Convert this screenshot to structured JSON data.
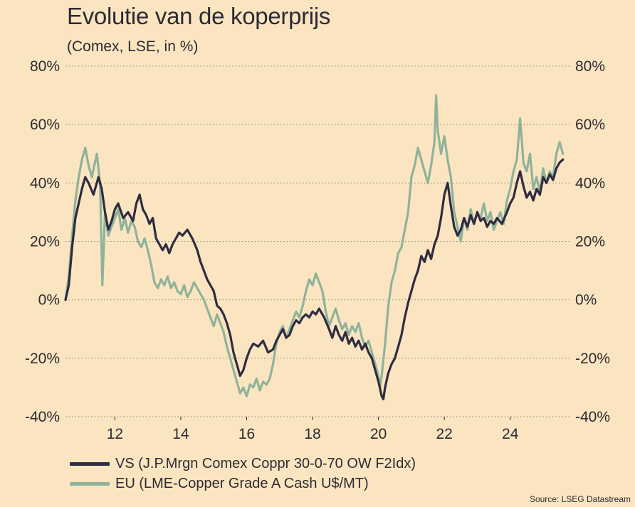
{
  "header": {
    "title": "Evolutie van de koperprijs",
    "subtitle": "(Comex, LSE, in %)"
  },
  "footer": {
    "source": "Source: LSEG Datastream"
  },
  "colors": {
    "vs": "#2e2c41",
    "eu": "#8fb39a",
    "grid": "#8a8480",
    "background": "#fbe5c0"
  },
  "chart_data": {
    "type": "line",
    "title": "Evolutie van de koperprijs",
    "subtitle": "(Comex, LSE, in %)",
    "xlabel": "",
    "ylabel": "",
    "xlim": [
      10.5,
      25.8
    ],
    "ylim": [
      -40,
      80
    ],
    "x_ticks": [
      12,
      14,
      16,
      18,
      20,
      22,
      24
    ],
    "x_tick_labels": [
      "12",
      "14",
      "16",
      "18",
      "20",
      "22",
      "24"
    ],
    "y_ticks": [
      -40,
      -20,
      0,
      20,
      40,
      60,
      80
    ],
    "y_tick_labels": [
      "-40%",
      "-20%",
      "0%",
      "20%",
      "40%",
      "60%",
      "80%"
    ],
    "y_axis": "both",
    "grid": "horizontal dotted",
    "legend": "bottom-left",
    "series": [
      {
        "name": "VS (J.P.Mrgn Comex Coppr 30-0-70 OW F2Idx)",
        "color": "#2e2c41",
        "points": [
          [
            10.5,
            0
          ],
          [
            10.6,
            5
          ],
          [
            10.7,
            18
          ],
          [
            10.8,
            28
          ],
          [
            10.9,
            33
          ],
          [
            11.0,
            38
          ],
          [
            11.1,
            42
          ],
          [
            11.2,
            40
          ],
          [
            11.35,
            36
          ],
          [
            11.5,
            42
          ],
          [
            11.6,
            38
          ],
          [
            11.7,
            30
          ],
          [
            11.8,
            24
          ],
          [
            11.9,
            27
          ],
          [
            12.0,
            31
          ],
          [
            12.1,
            33
          ],
          [
            12.25,
            28
          ],
          [
            12.4,
            30
          ],
          [
            12.55,
            27
          ],
          [
            12.65,
            33
          ],
          [
            12.75,
            36
          ],
          [
            12.85,
            31
          ],
          [
            12.95,
            29
          ],
          [
            13.05,
            26
          ],
          [
            13.15,
            28
          ],
          [
            13.25,
            21
          ],
          [
            13.35,
            19
          ],
          [
            13.45,
            17
          ],
          [
            13.55,
            19
          ],
          [
            13.65,
            16
          ],
          [
            13.75,
            19
          ],
          [
            13.85,
            21
          ],
          [
            13.95,
            23
          ],
          [
            14.05,
            22
          ],
          [
            14.2,
            24
          ],
          [
            14.35,
            21
          ],
          [
            14.5,
            17
          ],
          [
            14.6,
            13
          ],
          [
            14.7,
            10
          ],
          [
            14.8,
            7
          ],
          [
            14.9,
            5
          ],
          [
            15.0,
            3
          ],
          [
            15.1,
            -2
          ],
          [
            15.2,
            -3
          ],
          [
            15.3,
            -5
          ],
          [
            15.4,
            -8
          ],
          [
            15.5,
            -12
          ],
          [
            15.6,
            -18
          ],
          [
            15.7,
            -22
          ],
          [
            15.8,
            -26
          ],
          [
            15.9,
            -24
          ],
          [
            16.0,
            -20
          ],
          [
            16.1,
            -17
          ],
          [
            16.2,
            -15
          ],
          [
            16.35,
            -16
          ],
          [
            16.5,
            -14
          ],
          [
            16.65,
            -18
          ],
          [
            16.8,
            -17
          ],
          [
            16.9,
            -14
          ],
          [
            17.0,
            -12
          ],
          [
            17.1,
            -10
          ],
          [
            17.2,
            -13
          ],
          [
            17.3,
            -12
          ],
          [
            17.4,
            -9
          ],
          [
            17.5,
            -7
          ],
          [
            17.6,
            -8
          ],
          [
            17.7,
            -6
          ],
          [
            17.8,
            -5
          ],
          [
            17.9,
            -6
          ],
          [
            18.0,
            -4
          ],
          [
            18.1,
            -5
          ],
          [
            18.2,
            -3
          ],
          [
            18.35,
            -6
          ],
          [
            18.5,
            -10
          ],
          [
            18.6,
            -13
          ],
          [
            18.7,
            -9
          ],
          [
            18.8,
            -12
          ],
          [
            18.9,
            -14
          ],
          [
            19.0,
            -11
          ],
          [
            19.1,
            -15
          ],
          [
            19.2,
            -13
          ],
          [
            19.3,
            -16
          ],
          [
            19.4,
            -14
          ],
          [
            19.5,
            -17
          ],
          [
            19.6,
            -15
          ],
          [
            19.7,
            -18
          ],
          [
            19.8,
            -20
          ],
          [
            19.9,
            -24
          ],
          [
            20.0,
            -28
          ],
          [
            20.1,
            -33
          ],
          [
            20.15,
            -34
          ],
          [
            20.2,
            -30
          ],
          [
            20.3,
            -25
          ],
          [
            20.4,
            -22
          ],
          [
            20.5,
            -20
          ],
          [
            20.6,
            -16
          ],
          [
            20.7,
            -12
          ],
          [
            20.8,
            -6
          ],
          [
            20.9,
            -1
          ],
          [
            21.0,
            3
          ],
          [
            21.1,
            7
          ],
          [
            21.2,
            10
          ],
          [
            21.3,
            15
          ],
          [
            21.4,
            13
          ],
          [
            21.5,
            17
          ],
          [
            21.6,
            14
          ],
          [
            21.7,
            19
          ],
          [
            21.8,
            22
          ],
          [
            21.9,
            28
          ],
          [
            22.0,
            36
          ],
          [
            22.1,
            40
          ],
          [
            22.2,
            32
          ],
          [
            22.3,
            25
          ],
          [
            22.4,
            22
          ],
          [
            22.5,
            24
          ],
          [
            22.6,
            28
          ],
          [
            22.7,
            25
          ],
          [
            22.8,
            29
          ],
          [
            22.9,
            26
          ],
          [
            23.0,
            30
          ],
          [
            23.1,
            27
          ],
          [
            23.2,
            28
          ],
          [
            23.3,
            25
          ],
          [
            23.4,
            27
          ],
          [
            23.5,
            26
          ],
          [
            23.6,
            28
          ],
          [
            23.75,
            26
          ],
          [
            23.9,
            30
          ],
          [
            24.0,
            33
          ],
          [
            24.1,
            35
          ],
          [
            24.2,
            40
          ],
          [
            24.3,
            44
          ],
          [
            24.4,
            39
          ],
          [
            24.5,
            35
          ],
          [
            24.6,
            37
          ],
          [
            24.7,
            34
          ],
          [
            24.8,
            38
          ],
          [
            24.9,
            36
          ],
          [
            25.0,
            42
          ],
          [
            25.1,
            40
          ],
          [
            25.2,
            43
          ],
          [
            25.3,
            41
          ],
          [
            25.4,
            45
          ],
          [
            25.5,
            47
          ],
          [
            25.6,
            48
          ]
        ]
      },
      {
        "name": "EU (LME-Copper Grade A Cash U$/MT)",
        "color": "#8fb39a",
        "points": [
          [
            10.5,
            0
          ],
          [
            10.6,
            8
          ],
          [
            10.7,
            22
          ],
          [
            10.8,
            34
          ],
          [
            10.9,
            42
          ],
          [
            11.0,
            48
          ],
          [
            11.1,
            52
          ],
          [
            11.2,
            46
          ],
          [
            11.3,
            42
          ],
          [
            11.45,
            50
          ],
          [
            11.55,
            40
          ],
          [
            11.62,
            5
          ],
          [
            11.7,
            30
          ],
          [
            11.8,
            22
          ],
          [
            11.9,
            25
          ],
          [
            12.0,
            28
          ],
          [
            12.1,
            31
          ],
          [
            12.2,
            24
          ],
          [
            12.3,
            28
          ],
          [
            12.4,
            23
          ],
          [
            12.5,
            27
          ],
          [
            12.6,
            25
          ],
          [
            12.7,
            20
          ],
          [
            12.8,
            18
          ],
          [
            12.9,
            21
          ],
          [
            13.0,
            17
          ],
          [
            13.1,
            12
          ],
          [
            13.2,
            6
          ],
          [
            13.3,
            4
          ],
          [
            13.4,
            7
          ],
          [
            13.5,
            5
          ],
          [
            13.6,
            8
          ],
          [
            13.7,
            4
          ],
          [
            13.8,
            6
          ],
          [
            13.9,
            3
          ],
          [
            14.0,
            2
          ],
          [
            14.1,
            5
          ],
          [
            14.2,
            1
          ],
          [
            14.3,
            3
          ],
          [
            14.4,
            6
          ],
          [
            14.5,
            4
          ],
          [
            14.6,
            2
          ],
          [
            14.7,
            0
          ],
          [
            14.8,
            -3
          ],
          [
            14.9,
            -6
          ],
          [
            15.0,
            -9
          ],
          [
            15.1,
            -5
          ],
          [
            15.2,
            -8
          ],
          [
            15.3,
            -11
          ],
          [
            15.4,
            -16
          ],
          [
            15.5,
            -20
          ],
          [
            15.6,
            -24
          ],
          [
            15.7,
            -28
          ],
          [
            15.8,
            -32
          ],
          [
            15.9,
            -30
          ],
          [
            16.0,
            -33
          ],
          [
            16.1,
            -29
          ],
          [
            16.2,
            -30
          ],
          [
            16.3,
            -27
          ],
          [
            16.4,
            -31
          ],
          [
            16.5,
            -28
          ],
          [
            16.6,
            -29
          ],
          [
            16.7,
            -27
          ],
          [
            16.8,
            -22
          ],
          [
            16.9,
            -15
          ],
          [
            17.0,
            -11
          ],
          [
            17.1,
            -9
          ],
          [
            17.2,
            -13
          ],
          [
            17.3,
            -10
          ],
          [
            17.4,
            -7
          ],
          [
            17.5,
            -4
          ],
          [
            17.6,
            -6
          ],
          [
            17.7,
            -2
          ],
          [
            17.8,
            3
          ],
          [
            17.9,
            7
          ],
          [
            18.0,
            5
          ],
          [
            18.1,
            9
          ],
          [
            18.2,
            6
          ],
          [
            18.3,
            3
          ],
          [
            18.4,
            -4
          ],
          [
            18.5,
            -9
          ],
          [
            18.6,
            -6
          ],
          [
            18.7,
            -3
          ],
          [
            18.8,
            -7
          ],
          [
            18.9,
            -10
          ],
          [
            19.0,
            -8
          ],
          [
            19.1,
            -12
          ],
          [
            19.2,
            -9
          ],
          [
            19.3,
            -11
          ],
          [
            19.4,
            -8
          ],
          [
            19.5,
            -13
          ],
          [
            19.6,
            -16
          ],
          [
            19.7,
            -14
          ],
          [
            19.8,
            -18
          ],
          [
            19.9,
            -22
          ],
          [
            20.0,
            -26
          ],
          [
            20.05,
            -30
          ],
          [
            20.1,
            -26
          ],
          [
            20.2,
            -15
          ],
          [
            20.3,
            -2
          ],
          [
            20.4,
            6
          ],
          [
            20.5,
            10
          ],
          [
            20.6,
            16
          ],
          [
            20.7,
            18
          ],
          [
            20.8,
            24
          ],
          [
            20.9,
            30
          ],
          [
            21.0,
            42
          ],
          [
            21.1,
            46
          ],
          [
            21.2,
            52
          ],
          [
            21.3,
            48
          ],
          [
            21.4,
            44
          ],
          [
            21.5,
            40
          ],
          [
            21.6,
            46
          ],
          [
            21.7,
            54
          ],
          [
            21.75,
            70
          ],
          [
            21.8,
            58
          ],
          [
            21.9,
            50
          ],
          [
            22.0,
            56
          ],
          [
            22.1,
            48
          ],
          [
            22.2,
            42
          ],
          [
            22.3,
            30
          ],
          [
            22.4,
            25
          ],
          [
            22.5,
            20
          ],
          [
            22.6,
            28
          ],
          [
            22.7,
            24
          ],
          [
            22.8,
            31
          ],
          [
            22.9,
            26
          ],
          [
            23.0,
            30
          ],
          [
            23.1,
            28
          ],
          [
            23.2,
            33
          ],
          [
            23.3,
            27
          ],
          [
            23.4,
            30
          ],
          [
            23.5,
            24
          ],
          [
            23.6,
            27
          ],
          [
            23.7,
            30
          ],
          [
            23.8,
            26
          ],
          [
            23.9,
            34
          ],
          [
            24.0,
            38
          ],
          [
            24.1,
            44
          ],
          [
            24.2,
            48
          ],
          [
            24.3,
            62
          ],
          [
            24.35,
            55
          ],
          [
            24.4,
            47
          ],
          [
            24.5,
            44
          ],
          [
            24.6,
            50
          ],
          [
            24.7,
            38
          ],
          [
            24.8,
            42
          ],
          [
            24.9,
            37
          ],
          [
            25.0,
            45
          ],
          [
            25.1,
            40
          ],
          [
            25.2,
            44
          ],
          [
            25.3,
            42
          ],
          [
            25.4,
            50
          ],
          [
            25.5,
            54
          ],
          [
            25.6,
            50
          ]
        ]
      }
    ]
  }
}
